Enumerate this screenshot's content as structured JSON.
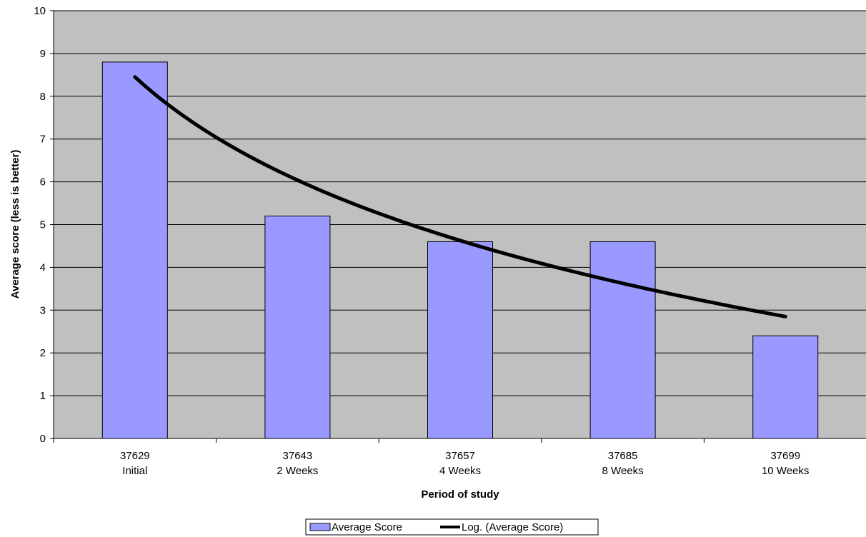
{
  "chart_data": {
    "type": "bar",
    "xlabel": "Period of study",
    "ylabel": "Average score (less is better)",
    "ylim": [
      0,
      10
    ],
    "yticks": [
      0,
      1,
      2,
      3,
      4,
      5,
      6,
      7,
      8,
      9,
      10
    ],
    "categories": [
      {
        "date": "37629",
        "label": "Initial"
      },
      {
        "date": "37643",
        "label": "2 Weeks"
      },
      {
        "date": "37657",
        "label": "4 Weeks"
      },
      {
        "date": "37685",
        "label": "8 Weeks"
      },
      {
        "date": "37699",
        "label": "10 Weeks"
      }
    ],
    "series": [
      {
        "name": "Average Score",
        "kind": "bar",
        "color": "#9999ff",
        "values": [
          8.8,
          5.2,
          4.6,
          4.6,
          2.4
        ]
      }
    ],
    "trendline": {
      "name": "Log. (Average Score)",
      "kind": "logarithmic",
      "color": "#000000",
      "values": [
        8.45,
        5.98,
        4.53,
        3.5,
        2.85
      ]
    },
    "plot_background": "#c0c0c0",
    "grid": true,
    "legend": "bottom-center"
  }
}
